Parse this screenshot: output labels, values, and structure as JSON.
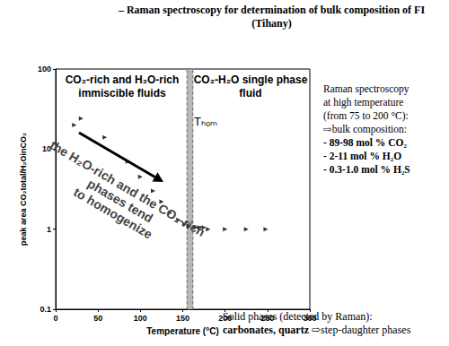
{
  "chart_data": {
    "type": "scatter",
    "x_label": "Temperature (°C)",
    "y_label": "peak area CO₂total/H₂OinCO₂",
    "x": [
      22,
      30,
      58,
      85,
      100,
      115,
      125,
      135,
      145,
      152,
      157,
      165,
      170,
      175,
      180,
      200,
      225,
      248
    ],
    "values": [
      20,
      24,
      14,
      7,
      4.5,
      3,
      2.2,
      1.6,
      1.3,
      1.15,
      1.1,
      1.05,
      1.05,
      1.05,
      1.0,
      1.0,
      1.0,
      1.0
    ],
    "xlim": [
      0,
      300
    ],
    "xticks": [
      0,
      50,
      100,
      150,
      200,
      250,
      300
    ],
    "ylim": [
      0.1,
      100
    ],
    "yticks": [
      0.1,
      1,
      10,
      100
    ],
    "log": "y",
    "grid": false,
    "marker": "triangle",
    "color": "#000000",
    "band": [
      155,
      162
    ],
    "band_label": "Tₕₒₘ",
    "regions": [
      "CO₂-rich and H₂O-rich immiscible fluids",
      "CO₂-H₂O single phase fluid"
    ],
    "arrow_text": [
      "the H₂O-rich and the CO₂-rich",
      "phases tend",
      "to homogenize"
    ]
  },
  "slide": {
    "title": "– Raman spectroscopy for determination of bulk composition of FI (Tihany)",
    "text_right": [
      [
        {
          "text": "Raman spectroscopy",
          "bold": false
        }
      ],
      [
        {
          "text": "at high temperature",
          "bold": false
        }
      ],
      [
        {
          "text": "(from 75 to 200 °C):",
          "bold": false
        }
      ],
      [
        {
          "text": "⇨bulk composition:",
          "bold": false
        }
      ],
      [
        {
          "text": "- 89-98 mol % CO₂",
          "bold": true
        }
      ],
      [
        {
          "text": "- 2-11 mol % H₂O",
          "bold": true
        }
      ],
      [
        {
          "text": "- 0.3-1.0 mol % H₂S",
          "bold": true
        }
      ]
    ],
    "text_bottom": [
      [
        {
          "text": "Solid phases (detected by Raman):",
          "bold": false
        }
      ],
      [
        {
          "text": "carbonates, quartz",
          "bold": true
        },
        {
          "text": " ⇨step-daughter phases",
          "bold": false
        }
      ]
    ]
  }
}
